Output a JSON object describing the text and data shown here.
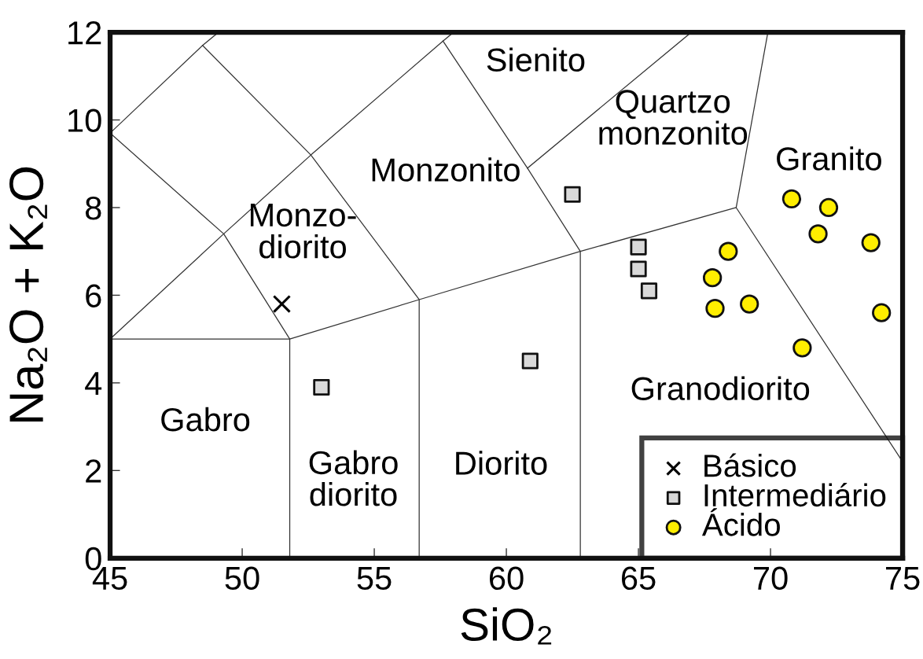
{
  "chart_data": {
    "type": "scatter",
    "xlabel": "SiO₂",
    "ylabel": "Na₂O + K₂O",
    "xlim": [
      45,
      75
    ],
    "ylim": [
      0,
      12
    ],
    "xticks": [
      45,
      50,
      55,
      60,
      65,
      70,
      75
    ],
    "yticks": [
      0,
      2,
      4,
      6,
      8,
      10,
      12
    ],
    "legend": "bottom right",
    "series": [
      {
        "type": "line",
        "color": "#333333",
        "marker": "none",
        "x": [
          45,
          49.3,
          51.8,
          51.8
        ],
        "values": [
          9.7,
          7.4,
          5.0,
          0
        ]
      },
      {
        "type": "line",
        "color": "#333333",
        "marker": "none",
        "x": [
          45,
          51.8,
          56.7,
          62.8,
          68.7,
          75
        ],
        "values": [
          5.0,
          5.0,
          5.9,
          7.0,
          8.0,
          2.2
        ]
      },
      {
        "type": "line",
        "color": "#333333",
        "marker": "none",
        "x": [
          45,
          49.3,
          52.6,
          57.6,
          58.0
        ],
        "values": [
          5.0,
          7.4,
          9.2,
          11.8,
          12
        ]
      },
      {
        "type": "line",
        "color": "#333333",
        "marker": "none",
        "x": [
          45,
          48.5,
          49.1
        ],
        "values": [
          9.7,
          11.7,
          12
        ]
      },
      {
        "type": "line",
        "color": "#333333",
        "marker": "none",
        "x": [
          48.5,
          52.6,
          56.7,
          56.7
        ],
        "values": [
          11.7,
          9.2,
          5.9,
          0
        ]
      },
      {
        "type": "line",
        "color": "#333333",
        "marker": "none",
        "x": [
          57.6,
          60.8,
          62.8,
          62.8
        ],
        "values": [
          11.8,
          8.9,
          7.0,
          0
        ]
      },
      {
        "type": "line",
        "color": "#333333",
        "marker": "none",
        "x": [
          60.8,
          67.0
        ],
        "values": [
          8.9,
          12
        ]
      },
      {
        "type": "line",
        "color": "#333333",
        "marker": "none",
        "x": [
          69.9,
          68.7
        ],
        "values": [
          12,
          8.0
        ]
      },
      {
        "name": "Básico",
        "marker": "cross",
        "color": "#000000",
        "x": [
          51.5
        ],
        "values": [
          5.8
        ]
      },
      {
        "name": "Intermediário",
        "marker": "square",
        "color": "#d9d9d9",
        "x": [
          65.0,
          65.0,
          65.4,
          62.5,
          60.9,
          53.0
        ],
        "values": [
          7.1,
          6.6,
          6.1,
          8.3,
          4.5,
          3.9
        ]
      },
      {
        "name": "Ácido",
        "marker": "circle",
        "color": "#ffee00",
        "x": [
          70.8,
          72.2,
          71.8,
          73.8,
          68.4,
          67.8,
          67.9,
          69.2,
          74.2,
          71.2
        ],
        "values": [
          8.2,
          8.0,
          7.4,
          7.2,
          7.0,
          6.4,
          5.7,
          5.8,
          5.6,
          4.8
        ]
      }
    ],
    "annotations": [
      "Sienito",
      "Quartzo\nmonzonito",
      "Monzonito",
      "Granito",
      "Monzo-\ndiorito",
      "Gabro",
      "Gabro\ndiorito",
      "Diorito",
      "Granodiorito"
    ]
  }
}
